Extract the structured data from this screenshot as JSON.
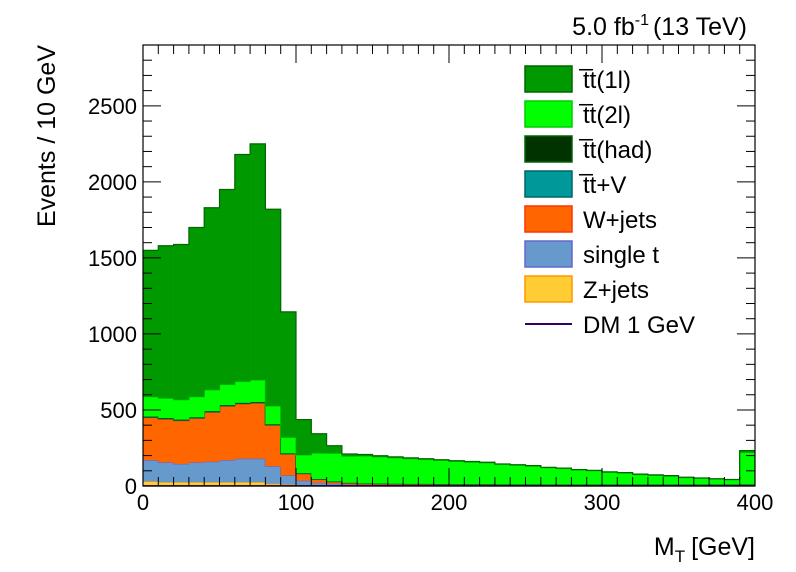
{
  "chart_data": {
    "type": "bar",
    "subtype": "stacked-histogram",
    "lumi_label": "5.0 fb",
    "lumi_sup": "-1",
    "energy_label": "(13 TeV)",
    "xlabel": "M",
    "xlabel_sub": "T",
    "xlabel_unit": "[GeV]",
    "ylabel": "Events / 10 GeV",
    "xlim": [
      0,
      400
    ],
    "ylim": [
      0,
      2900
    ],
    "x_ticks": [
      0,
      100,
      200,
      300,
      400
    ],
    "y_ticks": [
      0,
      500,
      1000,
      1500,
      2000,
      2500
    ],
    "bin_width": 10,
    "bin_edges": [
      0,
      10,
      20,
      30,
      40,
      50,
      60,
      70,
      80,
      90,
      100,
      110,
      120,
      130,
      140,
      150,
      160,
      170,
      180,
      190,
      200,
      210,
      220,
      230,
      240,
      250,
      260,
      270,
      280,
      290,
      300,
      310,
      320,
      330,
      340,
      350,
      360,
      370,
      380,
      390,
      400
    ],
    "grid": false,
    "legend_position": "top-right",
    "series": [
      {
        "name": "Z+jets",
        "legend_label": "Z+jets",
        "color": "#ffcc33",
        "edge": "#ff9900",
        "values": [
          30,
          25,
          25,
          25,
          25,
          25,
          25,
          25,
          15,
          10,
          5,
          3,
          3,
          2,
          2,
          2,
          2,
          2,
          2,
          2,
          2,
          2,
          2,
          2,
          2,
          2,
          2,
          2,
          2,
          2,
          2,
          2,
          2,
          2,
          2,
          2,
          2,
          2,
          2,
          2
        ]
      },
      {
        "name": "single t",
        "legend_label": "single t",
        "color": "#6699cc",
        "edge": "#6666cc",
        "values": [
          140,
          130,
          120,
          130,
          135,
          145,
          155,
          155,
          115,
          60,
          30,
          18,
          12,
          8,
          6,
          5,
          5,
          4,
          4,
          4,
          3,
          3,
          3,
          3,
          3,
          3,
          2,
          2,
          2,
          2,
          2,
          2,
          2,
          2,
          2,
          2,
          2,
          2,
          2,
          2
        ]
      },
      {
        "name": "W+jets",
        "legend_label": "W+jets",
        "color": "#ff6600",
        "edge": "#ff3300",
        "values": [
          280,
          285,
          285,
          290,
          325,
          355,
          360,
          365,
          270,
          140,
          45,
          22,
          12,
          8,
          6,
          6,
          5,
          5,
          5,
          4,
          4,
          4,
          4,
          3,
          3,
          3,
          3,
          3,
          3,
          3,
          3,
          3,
          3,
          3,
          3,
          3,
          3,
          3,
          3,
          3
        ]
      },
      {
        "name": "tt+V",
        "legend_label": "t̅t+V",
        "color": "#009999",
        "edge": "#006666",
        "values": [
          2,
          2,
          2,
          2,
          2,
          2,
          2,
          2,
          2,
          2,
          2,
          2,
          2,
          2,
          2,
          2,
          2,
          2,
          2,
          2,
          2,
          2,
          2,
          2,
          2,
          2,
          2,
          2,
          2,
          2,
          2,
          2,
          2,
          2,
          2,
          2,
          2,
          2,
          2,
          3
        ]
      },
      {
        "name": "tt(had)",
        "legend_label": "t̅t(had)",
        "color": "#003300",
        "edge": "#006600",
        "values": [
          5,
          5,
          5,
          5,
          5,
          5,
          5,
          5,
          4,
          3,
          2,
          1,
          1,
          1,
          1,
          1,
          1,
          1,
          1,
          1,
          1,
          1,
          1,
          1,
          1,
          1,
          1,
          1,
          1,
          1,
          1,
          1,
          1,
          1,
          1,
          1,
          1,
          1,
          1,
          1
        ]
      },
      {
        "name": "tt(2l)",
        "legend_label": "t̅t(2l)",
        "color": "#00ff00",
        "edge": "#00cc00",
        "values": [
          130,
          130,
          130,
          135,
          140,
          135,
          140,
          145,
          120,
          105,
          120,
          170,
          185,
          175,
          180,
          175,
          170,
          165,
          160,
          155,
          150,
          145,
          140,
          130,
          125,
          120,
          110,
          105,
          95,
          90,
          80,
          75,
          65,
          60,
          55,
          45,
          40,
          35,
          30,
          210
        ]
      },
      {
        "name": "tt(1l)",
        "legend_label": "t̅t(1l)",
        "color": "#009900",
        "edge": "#006600",
        "values": [
          963,
          1003,
          1021,
          1113,
          1198,
          1283,
          1493,
          1553,
          1294,
          825,
          233,
          128,
          50,
          15,
          10,
          8,
          7,
          6,
          5,
          5,
          4,
          4,
          4,
          4,
          4,
          3,
          3,
          3,
          3,
          3,
          3,
          3,
          3,
          3,
          3,
          3,
          3,
          3,
          3,
          12
        ]
      },
      {
        "name": "DM 1 GeV",
        "legend_label": "DM 1 GeV",
        "color": "#330066",
        "style": "line",
        "values": [
          1,
          1,
          1,
          1,
          1,
          1,
          1,
          1,
          1,
          1,
          1,
          1,
          1,
          1,
          1,
          1,
          1,
          1,
          1,
          1,
          1,
          1,
          1,
          1,
          1,
          1,
          1,
          1,
          1,
          1,
          1,
          1,
          1,
          1,
          1,
          1,
          1,
          1,
          1,
          1
        ]
      }
    ],
    "legend_order": [
      "tt(1l)",
      "tt(2l)",
      "tt(had)",
      "tt+V",
      "W+jets",
      "single t",
      "Z+jets",
      "DM 1 GeV"
    ]
  }
}
